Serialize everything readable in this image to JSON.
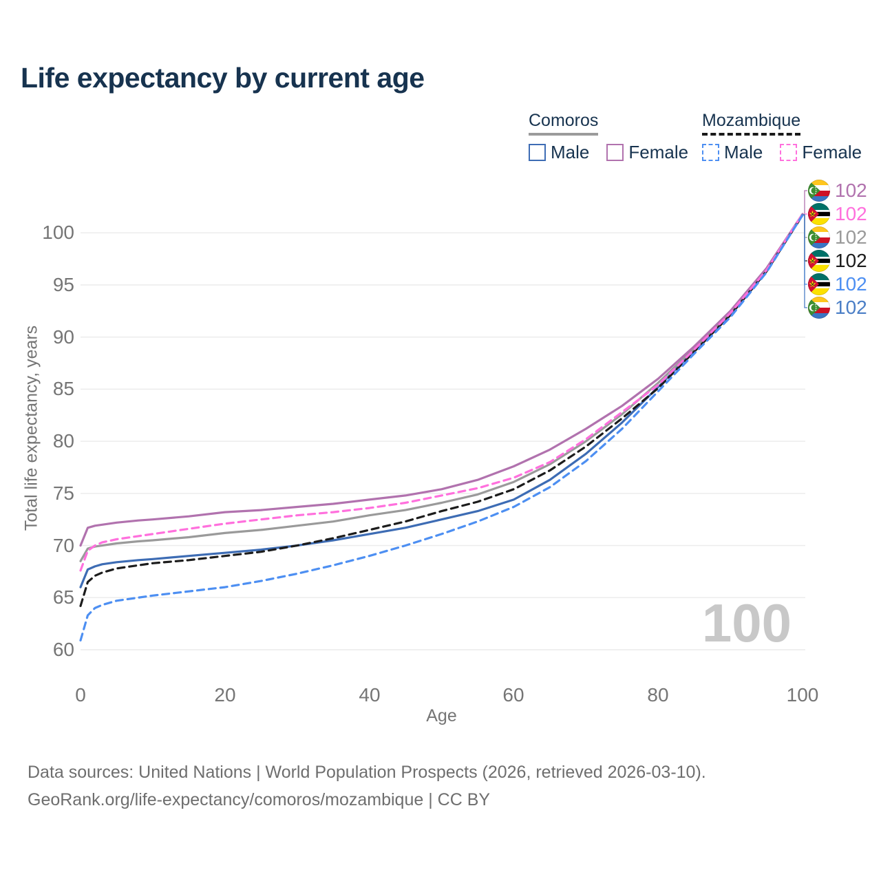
{
  "title": "Life expectancy by current age",
  "legend": {
    "groups": [
      {
        "country": "Comoros",
        "line_style": "solid",
        "underline_color": "#9b9b9b",
        "items": [
          {
            "label": "Male",
            "color": "#3d6cb4",
            "dashed": false
          },
          {
            "label": "Female",
            "color": "#b172ae",
            "dashed": false
          }
        ]
      },
      {
        "country": "Mozambique",
        "line_style": "dashed",
        "underline_color": "#1a1a1a",
        "items": [
          {
            "label": "Male",
            "color": "#4d8ff2",
            "dashed": true
          },
          {
            "label": "Female",
            "color": "#ff70dd",
            "dashed": true
          }
        ]
      }
    ]
  },
  "chart_data": {
    "type": "line",
    "title": "Life expectancy by current age",
    "xlabel": "Age",
    "ylabel": "Total life expectancy, years",
    "xlim": [
      0,
      100
    ],
    "ylim": [
      60,
      102
    ],
    "xticks": [
      0,
      20,
      40,
      60,
      80,
      100
    ],
    "yticks": [
      60,
      65,
      70,
      75,
      80,
      85,
      90,
      95,
      100
    ],
    "grid": "horizontal",
    "legend_position": "top-right",
    "series": [
      {
        "id": "comoros-male",
        "name": "Comoros Male",
        "color": "#3d6cb4",
        "dashed": false,
        "points": [
          [
            0,
            66.0
          ],
          [
            1,
            67.7
          ],
          [
            2,
            68.0
          ],
          [
            3,
            68.2
          ],
          [
            5,
            68.4
          ],
          [
            8,
            68.6
          ],
          [
            10,
            68.7
          ],
          [
            15,
            69.0
          ],
          [
            20,
            69.3
          ],
          [
            25,
            69.6
          ],
          [
            30,
            70.0
          ],
          [
            35,
            70.5
          ],
          [
            40,
            71.1
          ],
          [
            45,
            71.7
          ],
          [
            50,
            72.5
          ],
          [
            55,
            73.3
          ],
          [
            60,
            74.4
          ],
          [
            65,
            76.3
          ],
          [
            70,
            78.8
          ],
          [
            75,
            81.8
          ],
          [
            80,
            85.2
          ],
          [
            85,
            88.7
          ],
          [
            90,
            92.1
          ],
          [
            95,
            96.3
          ],
          [
            100,
            101.7
          ]
        ]
      },
      {
        "id": "comoros-total",
        "name": "Comoros",
        "color": "#9a9a9a",
        "dashed": false,
        "points": [
          [
            0,
            68.5
          ],
          [
            1,
            69.7
          ],
          [
            2,
            69.9
          ],
          [
            3,
            70.0
          ],
          [
            5,
            70.2
          ],
          [
            8,
            70.4
          ],
          [
            10,
            70.5
          ],
          [
            15,
            70.8
          ],
          [
            20,
            71.2
          ],
          [
            25,
            71.5
          ],
          [
            30,
            71.9
          ],
          [
            35,
            72.3
          ],
          [
            40,
            72.9
          ],
          [
            45,
            73.4
          ],
          [
            50,
            74.1
          ],
          [
            55,
            74.9
          ],
          [
            60,
            76.1
          ],
          [
            65,
            77.8
          ],
          [
            70,
            80.0
          ],
          [
            75,
            82.6
          ],
          [
            80,
            85.6
          ],
          [
            85,
            88.9
          ],
          [
            90,
            92.3
          ],
          [
            95,
            96.4
          ],
          [
            100,
            101.7
          ]
        ]
      },
      {
        "id": "comoros-female",
        "name": "Comoros Female",
        "color": "#b172ae",
        "dashed": false,
        "points": [
          [
            0,
            70.0
          ],
          [
            1,
            71.7
          ],
          [
            2,
            71.9
          ],
          [
            3,
            72.0
          ],
          [
            5,
            72.2
          ],
          [
            8,
            72.4
          ],
          [
            10,
            72.5
          ],
          [
            15,
            72.8
          ],
          [
            20,
            73.2
          ],
          [
            25,
            73.4
          ],
          [
            30,
            73.7
          ],
          [
            35,
            74.0
          ],
          [
            40,
            74.4
          ],
          [
            45,
            74.8
          ],
          [
            50,
            75.4
          ],
          [
            55,
            76.3
          ],
          [
            60,
            77.6
          ],
          [
            65,
            79.2
          ],
          [
            70,
            81.2
          ],
          [
            75,
            83.4
          ],
          [
            80,
            86.0
          ],
          [
            85,
            89.1
          ],
          [
            90,
            92.5
          ],
          [
            95,
            96.6
          ],
          [
            100,
            101.8
          ]
        ]
      },
      {
        "id": "mozambique-total",
        "name": "Mozambique",
        "color": "#1c1c1c",
        "dashed": true,
        "points": [
          [
            0,
            64.2
          ],
          [
            1,
            66.5
          ],
          [
            2,
            67.1
          ],
          [
            3,
            67.4
          ],
          [
            5,
            67.8
          ],
          [
            8,
            68.1
          ],
          [
            10,
            68.3
          ],
          [
            15,
            68.6
          ],
          [
            20,
            69.0
          ],
          [
            25,
            69.4
          ],
          [
            30,
            70.0
          ],
          [
            35,
            70.7
          ],
          [
            40,
            71.5
          ],
          [
            45,
            72.3
          ],
          [
            50,
            73.3
          ],
          [
            55,
            74.2
          ],
          [
            60,
            75.4
          ],
          [
            65,
            77.2
          ],
          [
            70,
            79.5
          ],
          [
            75,
            82.2
          ],
          [
            80,
            85.1
          ],
          [
            85,
            88.6
          ],
          [
            90,
            92.1
          ],
          [
            95,
            96.3
          ],
          [
            100,
            101.7
          ]
        ]
      },
      {
        "id": "mozambique-female",
        "name": "Mozambique Female",
        "color": "#ff70dd",
        "dashed": true,
        "points": [
          [
            0,
            67.6
          ],
          [
            1,
            69.5
          ],
          [
            2,
            70.0
          ],
          [
            3,
            70.3
          ],
          [
            5,
            70.6
          ],
          [
            8,
            70.9
          ],
          [
            10,
            71.1
          ],
          [
            15,
            71.6
          ],
          [
            20,
            72.1
          ],
          [
            25,
            72.5
          ],
          [
            30,
            72.9
          ],
          [
            35,
            73.2
          ],
          [
            40,
            73.6
          ],
          [
            45,
            74.1
          ],
          [
            50,
            74.8
          ],
          [
            55,
            75.5
          ],
          [
            60,
            76.5
          ],
          [
            65,
            78.0
          ],
          [
            70,
            80.2
          ],
          [
            75,
            82.8
          ],
          [
            80,
            85.4
          ],
          [
            85,
            88.8
          ],
          [
            90,
            92.3
          ],
          [
            95,
            96.4
          ],
          [
            100,
            101.8
          ]
        ]
      },
      {
        "id": "mozambique-male",
        "name": "Mozambique Male",
        "color": "#4d8ff2",
        "dashed": true,
        "points": [
          [
            0,
            60.9
          ],
          [
            1,
            63.3
          ],
          [
            2,
            64.0
          ],
          [
            3,
            64.3
          ],
          [
            5,
            64.7
          ],
          [
            8,
            65.0
          ],
          [
            10,
            65.2
          ],
          [
            15,
            65.6
          ],
          [
            20,
            66.0
          ],
          [
            25,
            66.6
          ],
          [
            30,
            67.3
          ],
          [
            35,
            68.1
          ],
          [
            40,
            69.0
          ],
          [
            45,
            70.0
          ],
          [
            50,
            71.1
          ],
          [
            55,
            72.3
          ],
          [
            60,
            73.7
          ],
          [
            65,
            75.6
          ],
          [
            70,
            78.1
          ],
          [
            75,
            81.2
          ],
          [
            80,
            84.8
          ],
          [
            85,
            88.4
          ],
          [
            90,
            91.9
          ],
          [
            95,
            96.2
          ],
          [
            100,
            101.7
          ]
        ]
      }
    ]
  },
  "end_labels": [
    {
      "flag": "comoros",
      "value": "102",
      "color": "#b172ae"
    },
    {
      "flag": "mozambique",
      "value": "102",
      "color": "#ff70dd"
    },
    {
      "flag": "comoros",
      "value": "102",
      "color": "#9a9a9a"
    },
    {
      "flag": "mozambique",
      "value": "102",
      "color": "#1c1c1c"
    },
    {
      "flag": "mozambique",
      "value": "102",
      "color": "#4d8ff2"
    },
    {
      "flag": "comoros",
      "value": "102",
      "color": "#4a7ec6"
    }
  ],
  "watermark": "100",
  "footer": {
    "line1": "Data sources: United Nations | World Population Prospects (2026, retrieved 2026-03-10).",
    "line2": "GeoRank.org/life-expectancy/comoros/mozambique | CC BY"
  }
}
